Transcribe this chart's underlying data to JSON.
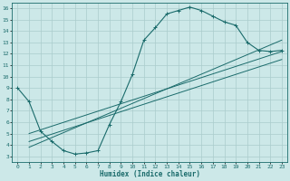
{
  "xlabel": "Humidex (Indice chaleur)",
  "xlim": [
    -0.5,
    23.5
  ],
  "ylim": [
    2.5,
    16.5
  ],
  "yticks": [
    3,
    4,
    5,
    6,
    7,
    8,
    9,
    10,
    11,
    12,
    13,
    14,
    15,
    16
  ],
  "xticks": [
    0,
    1,
    2,
    3,
    4,
    5,
    6,
    7,
    8,
    9,
    10,
    11,
    12,
    13,
    14,
    15,
    16,
    17,
    18,
    19,
    20,
    21,
    22,
    23
  ],
  "bg_color": "#cce8e8",
  "line_color": "#1a6b6b",
  "grid_color": "#aacccc",
  "curve_x": [
    0,
    1,
    2,
    3,
    4,
    5,
    6,
    7,
    8,
    9,
    10,
    11,
    12,
    13,
    14,
    15,
    16,
    17,
    18,
    19,
    20,
    21,
    22,
    23
  ],
  "curve_y": [
    9.0,
    7.8,
    5.2,
    4.3,
    3.5,
    3.2,
    3.3,
    3.5,
    5.8,
    7.8,
    10.2,
    13.2,
    14.3,
    15.5,
    15.8,
    16.1,
    15.8,
    15.3,
    14.8,
    14.5,
    13.0,
    12.3,
    12.2,
    12.3
  ],
  "line1_x": [
    1,
    23
  ],
  "line1_y": [
    5.0,
    12.2
  ],
  "line2_x": [
    1,
    23
  ],
  "line2_y": [
    4.3,
    11.5
  ],
  "line3_x": [
    1,
    23
  ],
  "line3_y": [
    3.8,
    13.2
  ]
}
